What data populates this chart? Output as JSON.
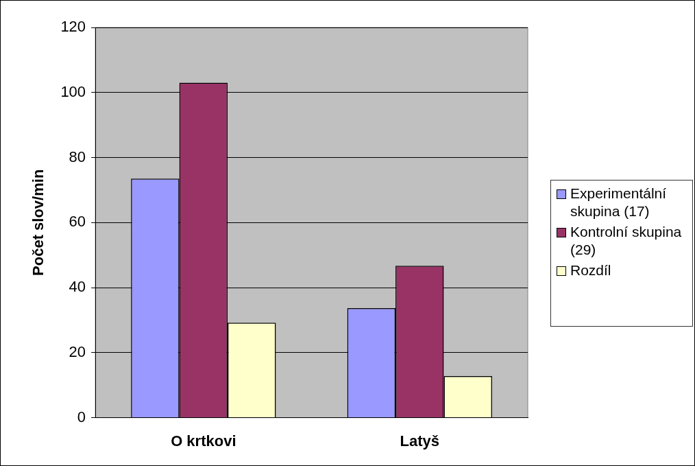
{
  "chart_data": {
    "type": "bar",
    "ylabel": "Počet slov/min",
    "categories": [
      "O krtkovi",
      "Latyš"
    ],
    "series": [
      {
        "name": "Experimentální skupina (17)",
        "color": "#9999ff",
        "values": [
          73.5,
          33.7
        ]
      },
      {
        "name": "Kontrolní skupina (29)",
        "color": "#993366",
        "values": [
          103,
          46.7
        ]
      },
      {
        "name": "Rozdíl",
        "color": "#ffffcc",
        "values": [
          29.2,
          12.8
        ]
      }
    ],
    "ylim": [
      0,
      120
    ],
    "yticks": [
      0,
      20,
      40,
      60,
      80,
      100,
      120
    ],
    "grid": "y",
    "legend": "right"
  }
}
